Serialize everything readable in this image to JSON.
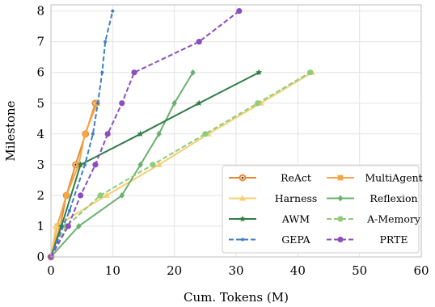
{
  "chart_data": {
    "type": "line",
    "xlabel": "Cum. Tokens (M)",
    "ylabel": "Milestone",
    "xlim": [
      0,
      60
    ],
    "ylim": [
      0,
      8.2
    ],
    "xticks": [
      0,
      10,
      20,
      30,
      40,
      50,
      60
    ],
    "yticks": [
      0,
      1,
      2,
      3,
      4,
      5,
      6,
      7,
      8
    ],
    "grid": true,
    "legend_position": "lower-right",
    "series": [
      {
        "name": "ReAct",
        "color": "#e8892f",
        "dash": "solid",
        "marker": "circle-ring",
        "x": [
          0,
          1.5,
          2.5,
          4.0,
          5.6,
          7.2
        ],
        "y": [
          0,
          1,
          2,
          3,
          4,
          5
        ]
      },
      {
        "name": "MultiAgent",
        "color": "#f2a648",
        "dash": "solid",
        "marker": "square",
        "x": [
          0,
          1.0,
          2.5,
          4.5,
          5.5,
          7.5
        ],
        "y": [
          0,
          1,
          2,
          3,
          4,
          5
        ]
      },
      {
        "name": "Harness",
        "color": "#f5cf76",
        "dash": "solid",
        "marker": "triangle",
        "x": [
          0,
          0.8,
          9.0,
          17.5,
          25.5,
          34.0,
          42.3
        ],
        "y": [
          0,
          1,
          2,
          3,
          4,
          5,
          6
        ]
      },
      {
        "name": "Reflexion",
        "color": "#6ab16e",
        "dash": "solid",
        "marker": "diamond",
        "x": [
          0,
          4.5,
          11.5,
          14.5,
          17.5,
          20.0,
          23.0
        ],
        "y": [
          0,
          1,
          2,
          3,
          4,
          5,
          6
        ]
      },
      {
        "name": "AWM",
        "color": "#2f7d46",
        "dash": "solid",
        "marker": "star",
        "x": [
          0,
          1.7,
          4.8,
          14.5,
          24.0,
          33.7
        ],
        "y": [
          0,
          1,
          3,
          4,
          5,
          6
        ]
      },
      {
        "name": "A-Memory",
        "color": "#8fcc77",
        "dash": "dashed",
        "marker": "circle",
        "x": [
          0,
          2.5,
          8.0,
          16.5,
          25.0,
          33.5,
          42.0
        ],
        "y": [
          0,
          1,
          2,
          3,
          4,
          5,
          6
        ]
      },
      {
        "name": "GEPA",
        "color": "#3f7fc1",
        "dash": "dashed",
        "marker": "dot",
        "x": [
          0,
          1.0,
          3.0,
          5.5,
          6.8,
          7.6,
          8.3,
          8.8,
          10.0
        ],
        "y": [
          0,
          0.5,
          1.5,
          3,
          4,
          5,
          6,
          7,
          8
        ]
      },
      {
        "name": "PRTE",
        "color": "#8a4fbd",
        "dash": "dashed",
        "marker": "circle",
        "x": [
          0,
          2.8,
          4.8,
          7.2,
          9.2,
          11.5,
          13.5,
          24.0,
          30.5
        ],
        "y": [
          0,
          1,
          2,
          3,
          4,
          5,
          6,
          7,
          8
        ]
      }
    ]
  }
}
